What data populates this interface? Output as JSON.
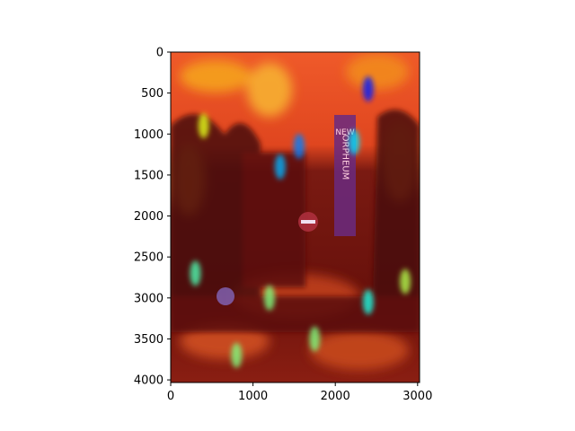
{
  "chart_data": {
    "type": "heatmap",
    "title": "",
    "xlabel": "",
    "ylabel": "",
    "xlim": [
      0,
      3024
    ],
    "ylim": [
      4032,
      0
    ],
    "x_ticks": [
      0,
      1000,
      2000,
      3000
    ],
    "y_ticks": [
      0,
      500,
      1000,
      1500,
      2000,
      2500,
      3000,
      3500,
      4000
    ],
    "colormap": "jet",
    "overlay": "saliency heatmap blended over a street photo",
    "hot_spots": [
      {
        "x": 2400,
        "y": 450,
        "intensity": 0.15
      },
      {
        "x": 1560,
        "y": 1150,
        "intensity": 0.25
      },
      {
        "x": 1330,
        "y": 1400,
        "intensity": 0.3
      },
      {
        "x": 2230,
        "y": 1100,
        "intensity": 0.35
      },
      {
        "x": 300,
        "y": 2700,
        "intensity": 0.45
      },
      {
        "x": 1200,
        "y": 3000,
        "intensity": 0.5
      },
      {
        "x": 2400,
        "y": 3050,
        "intensity": 0.4
      },
      {
        "x": 2850,
        "y": 2800,
        "intensity": 0.55
      },
      {
        "x": 800,
        "y": 3700,
        "intensity": 0.5
      },
      {
        "x": 1750,
        "y": 3500,
        "intensity": 0.5
      },
      {
        "x": 400,
        "y": 900,
        "intensity": 0.6
      }
    ],
    "photo_text": [
      "NEW",
      "ORPHEUM"
    ],
    "colors": {
      "sky": "#e84a2a",
      "warm": "#f28a1e",
      "dark": "#5a0e0a",
      "tower": "#6a2a80",
      "cyan": "#7fe0d0"
    }
  }
}
